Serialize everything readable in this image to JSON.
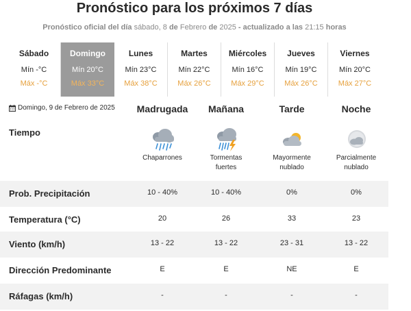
{
  "header": {
    "title": "Pronóstico para los próximos 7 días",
    "subtitle_prefix": "Pronóstico oficial del día",
    "subtitle_date_part1": "sábado, 8",
    "subtitle_de1": "de",
    "subtitle_date_part2": "Febrero",
    "subtitle_de2": "de",
    "subtitle_year": "2025",
    "subtitle_updated": "- actualizado a las",
    "subtitle_time": "21:15",
    "subtitle_horas": "horas"
  },
  "days": [
    {
      "name": "Sábado",
      "min": "Mín -°C",
      "max": "Máx -°C",
      "active": false
    },
    {
      "name": "Domingo",
      "min": "Mín 20°C",
      "max": "Máx 33°C",
      "active": true
    },
    {
      "name": "Lunes",
      "min": "Mín 23°C",
      "max": "Máx 38°C",
      "active": false
    },
    {
      "name": "Martes",
      "min": "Mín 22°C",
      "max": "Máx 26°C",
      "active": false
    },
    {
      "name": "Miércoles",
      "min": "Mín 16°C",
      "max": "Máx 29°C",
      "active": false
    },
    {
      "name": "Jueves",
      "min": "Mín 19°C",
      "max": "Máx 26°C",
      "active": false
    },
    {
      "name": "Viernes",
      "min": "Mín 20°C",
      "max": "Máx 27°C",
      "active": false
    }
  ],
  "detail": {
    "date": "Domingo, 9 de Febrero de 2025",
    "periods": [
      "Madrugada",
      "Mañana",
      "Tarde",
      "Noche"
    ],
    "weather_label": "Tiempo",
    "weather": [
      {
        "icon": "rain-cloud-icon",
        "line1": "Chaparrones",
        "line2": ""
      },
      {
        "icon": "thunderstorm-icon",
        "line1": "Tormentas",
        "line2": "fuertes"
      },
      {
        "icon": "mostly-cloudy-day-icon",
        "line1": "Mayormente",
        "line2": "nublado"
      },
      {
        "icon": "partly-cloudy-night-icon",
        "line1": "Parcialmente",
        "line2": "nublado"
      }
    ],
    "rows": [
      {
        "label": "Prob. Precipitación",
        "values": [
          "10 - 40%",
          "10 - 40%",
          "0%",
          "0%"
        ]
      },
      {
        "label": "Temperatura (°C)",
        "values": [
          "20",
          "26",
          "33",
          "23"
        ]
      },
      {
        "label": "Viento (km/h)",
        "values": [
          "13 - 22",
          "13 - 22",
          "23 - 31",
          "13 - 22"
        ]
      },
      {
        "label": "Dirección Predominante",
        "values": [
          "E",
          "E",
          "NE",
          "E"
        ]
      },
      {
        "label": "Ráfagas (km/h)",
        "values": [
          "-",
          "-",
          "-",
          "-"
        ]
      }
    ]
  },
  "colors": {
    "max_temp": "#e6a03c",
    "active_day_bg": "#9b9b9b",
    "row_band": "#f2f2f2"
  }
}
